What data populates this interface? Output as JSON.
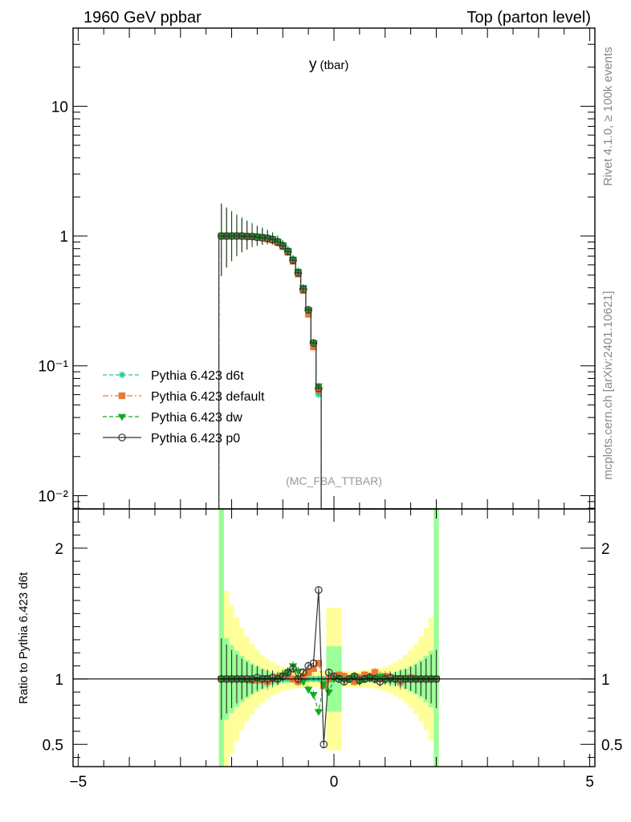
{
  "header": {
    "left": "1960 GeV ppbar",
    "right": "Top (parton level)"
  },
  "side": {
    "rivet": "Rivet 4.1.0, ≥ 100k events",
    "mcplots": "mcplots.cern.ch [arXiv:2401.10621]"
  },
  "chart_data": {
    "type": "line",
    "title": "y",
    "title_sub": "(tbar)",
    "annotation": "(MC_FBA_TTBAR)",
    "xlim": [
      -5.1,
      5.1
    ],
    "x_ticks": [
      -5,
      0,
      5
    ],
    "x_tick_labels": [
      "−5",
      "0",
      "5"
    ],
    "main": {
      "yscale": "log",
      "ylim": [
        0.0079,
        40
      ],
      "y_ticks": [
        0.01,
        0.1,
        1,
        10
      ],
      "y_tick_labels": [
        "10⁻²",
        "10⁻¹",
        "1",
        "10"
      ],
      "baseline": 0.0079
    },
    "ratio": {
      "ylabel": "Ratio to Pythia 6.423 d6t",
      "yscale": "linear",
      "ylim": [
        0.33,
        2.3
      ],
      "y_ticks": [
        0.5,
        1,
        2
      ],
      "y_tick_labels": [
        "0.5",
        "1",
        "2"
      ]
    },
    "legend_position": "middle-left",
    "x": [
      -2.2,
      -2.1,
      -2.0,
      -1.9,
      -1.8,
      -1.7,
      -1.6,
      -1.5,
      -1.4,
      -1.3,
      -1.2,
      -1.1,
      -1.0,
      -0.9,
      -0.8,
      -0.7,
      -0.6,
      -0.5,
      -0.4,
      -0.3,
      -0.2,
      -0.1,
      0.0,
      0.1,
      0.2,
      0.3,
      0.4,
      0.5,
      0.6,
      0.7,
      0.8,
      0.9,
      1.0,
      1.1,
      1.2,
      1.3,
      1.4,
      1.5,
      1.6,
      1.7,
      1.8,
      1.9,
      2.0
    ],
    "series": [
      {
        "name": "Pythia 6.423 d6t",
        "color": "#22cc88",
        "marker": "star",
        "line": "dashed",
        "values": [
          1.02,
          1.02,
          1.02,
          1.02,
          1.02,
          1.01,
          1.01,
          1.0,
          1.0,
          0.98,
          0.96,
          0.92,
          0.86,
          0.78,
          0.67,
          0.54,
          0.4,
          0.26,
          0.145,
          0.06,
          0.0079,
          0.0079,
          0.0079,
          0.0079,
          0.0079,
          0.0079,
          0.0079,
          0.0079,
          0.0079,
          0.0079,
          0.0079,
          0.0079,
          0.0079,
          0.0079,
          0.0079,
          0.0079,
          0.0079,
          0.0079,
          0.0079,
          0.0079,
          0.0079,
          0.0079,
          0.0079
        ],
        "ratio": [
          1,
          1,
          1,
          1,
          1,
          1,
          1,
          1,
          1,
          1,
          1,
          1,
          1,
          1,
          1,
          1,
          1,
          1,
          1,
          1,
          1,
          1,
          1,
          1,
          1,
          1,
          1,
          1,
          1,
          1,
          1,
          1,
          1,
          1,
          1,
          1,
          1,
          1,
          1,
          1,
          1,
          1,
          1
        ]
      },
      {
        "name": "Pythia 6.423 default",
        "color": "#ee7733",
        "marker": "square",
        "line": "dashdot",
        "values": [
          1.0,
          1.0,
          1.0,
          1.0,
          1.0,
          1.0,
          0.99,
          0.98,
          0.97,
          0.95,
          0.93,
          0.89,
          0.83,
          0.75,
          0.64,
          0.51,
          0.38,
          0.25,
          0.14,
          0.065,
          0.0079,
          0.0079,
          0.0079,
          0.0079,
          0.0079,
          0.0079,
          0.0079,
          0.0079,
          0.0079,
          0.0079,
          0.0079,
          0.0079,
          0.0079,
          0.0079,
          0.0079,
          0.0079,
          0.0079,
          0.0079,
          0.0079,
          0.0079,
          0.0079,
          0.0079,
          0.0079
        ],
        "ratio": [
          1,
          1,
          1,
          1,
          1,
          1.0,
          0.99,
          0.99,
          1.0,
          0.98,
          1.0,
          1.01,
          1.02,
          1.03,
          1.0,
          0.98,
          1.02,
          1.05,
          1.08,
          1.12,
          0.95,
          1.0,
          1.02,
          1.03,
          1.02,
          1.0,
          0.98,
          1.01,
          1.03,
          1.02,
          1.05,
          1.0,
          1.02,
          1.01,
          1.0,
          0.98,
          1.0,
          1.01,
          1,
          1,
          1,
          1,
          1
        ]
      },
      {
        "name": "Pythia 6.423 dw",
        "color": "#11aa22",
        "marker": "triangle-down",
        "line": "dashed",
        "values": [
          1.0,
          1.0,
          1.0,
          1.0,
          1.0,
          1.0,
          1.0,
          0.99,
          0.98,
          0.97,
          0.95,
          0.91,
          0.85,
          0.77,
          0.66,
          0.53,
          0.4,
          0.27,
          0.15,
          0.07,
          0.0079,
          0.0079,
          0.0079,
          0.0079,
          0.0079,
          0.0079,
          0.0079,
          0.0079,
          0.0079,
          0.0079,
          0.0079,
          0.0079,
          0.0079,
          0.0079,
          0.0079,
          0.0079,
          0.0079,
          0.0079,
          0.0079,
          0.0079,
          0.0079,
          0.0079,
          0.0079
        ],
        "ratio": [
          1,
          1,
          1,
          1,
          1,
          0.99,
          1.0,
          1.0,
          1.0,
          1.01,
          0.99,
          1.0,
          1.03,
          1.05,
          1.1,
          1.06,
          0.98,
          0.92,
          0.88,
          0.75,
          0.96,
          0.9,
          1.0,
          1.01,
          0.99,
          1.0,
          1.02,
          0.98,
          1.0,
          1.01,
          1.0,
          1.02,
          1.0,
          0.99,
          1.0,
          1.01,
          1.0,
          1.0,
          1,
          1,
          1,
          1,
          1
        ]
      },
      {
        "name": "Pythia 6.423 p0",
        "color": "#333333",
        "marker": "circle-open",
        "line": "solid",
        "values": [
          1.0,
          1.0,
          1.0,
          1.0,
          1.0,
          0.99,
          0.99,
          0.98,
          0.97,
          0.96,
          0.94,
          0.9,
          0.84,
          0.76,
          0.65,
          0.52,
          0.39,
          0.27,
          0.15,
          0.067,
          0.0079,
          0.0079,
          0.0079,
          0.0079,
          0.0079,
          0.0079,
          0.0079,
          0.0079,
          0.0079,
          0.0079,
          0.0079,
          0.0079,
          0.0079,
          0.0079,
          0.0079,
          0.0079,
          0.0079,
          0.0079,
          0.0079,
          0.0079,
          0.0079,
          0.0079,
          0.0079
        ],
        "ratio": [
          1,
          1,
          1,
          1,
          1,
          1.0,
          1.0,
          1.01,
          1.0,
          1.0,
          1.01,
          1.0,
          1.02,
          1.05,
          1.08,
          1.0,
          1.05,
          1.1,
          1.12,
          1.68,
          0.5,
          1.05,
          1.02,
          1.0,
          0.98,
          1.0,
          1.02,
          0.99,
          1.0,
          1.01,
          1.0,
          0.98,
          1.0,
          1.01,
          1.0,
          1.0,
          1.0,
          1.0,
          1,
          1,
          1,
          1,
          1
        ]
      }
    ]
  }
}
